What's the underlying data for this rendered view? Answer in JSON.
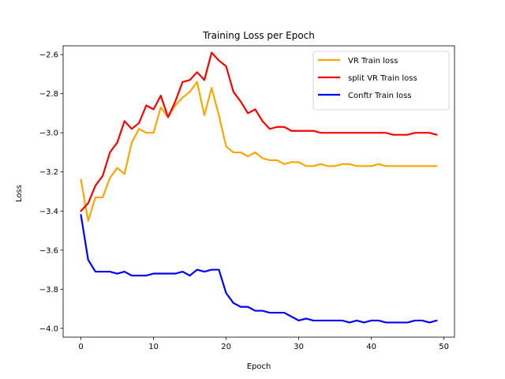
{
  "chart_data": {
    "type": "line",
    "title": "Training Loss per Epoch",
    "xlabel": "Epoch",
    "ylabel": "Loss",
    "xlim": [
      -2.45,
      51.45
    ],
    "ylim": [
      -4.045,
      -2.555
    ],
    "xticks": [
      0,
      10,
      20,
      30,
      40,
      50
    ],
    "yticks": [
      -4.0,
      -3.8,
      -3.6,
      -3.4,
      -3.2,
      -3.0,
      -2.8,
      -2.6
    ],
    "xtick_labels": [
      "0",
      "10",
      "20",
      "30",
      "40",
      "50"
    ],
    "ytick_labels": [
      "−4.0",
      "−3.8",
      "−3.6",
      "−3.4",
      "−3.2",
      "−3.0",
      "−2.8",
      "−2.6"
    ],
    "grid": false,
    "legend_position": "upper right",
    "x": [
      0,
      1,
      2,
      3,
      4,
      5,
      6,
      7,
      8,
      9,
      10,
      11,
      12,
      13,
      14,
      15,
      16,
      17,
      18,
      19,
      20,
      21,
      22,
      23,
      24,
      25,
      26,
      27,
      28,
      29,
      30,
      31,
      32,
      33,
      34,
      35,
      36,
      37,
      38,
      39,
      40,
      41,
      42,
      43,
      44,
      45,
      46,
      47,
      48,
      49
    ],
    "series": [
      {
        "name": "VR Train loss",
        "color": "#ffa500",
        "values": [
          -3.24,
          -3.45,
          -3.33,
          -3.33,
          -3.23,
          -3.18,
          -3.21,
          -3.05,
          -2.98,
          -3.0,
          -3.0,
          -2.87,
          -2.92,
          -2.86,
          -2.82,
          -2.79,
          -2.74,
          -2.91,
          -2.77,
          -2.91,
          -3.07,
          -3.1,
          -3.1,
          -3.12,
          -3.1,
          -3.13,
          -3.14,
          -3.14,
          -3.16,
          -3.15,
          -3.15,
          -3.17,
          -3.17,
          -3.16,
          -3.17,
          -3.17,
          -3.16,
          -3.16,
          -3.17,
          -3.17,
          -3.17,
          -3.16,
          -3.17,
          -3.17,
          -3.17,
          -3.17,
          -3.17,
          -3.17,
          -3.17,
          -3.17
        ]
      },
      {
        "name": "split VR Train loss",
        "color": "#ff0000",
        "values": [
          -3.4,
          -3.36,
          -3.27,
          -3.22,
          -3.1,
          -3.05,
          -2.94,
          -2.98,
          -2.95,
          -2.86,
          -2.88,
          -2.81,
          -2.92,
          -2.84,
          -2.74,
          -2.73,
          -2.69,
          -2.73,
          -2.59,
          -2.63,
          -2.66,
          -2.79,
          -2.84,
          -2.9,
          -2.88,
          -2.94,
          -2.98,
          -2.97,
          -2.97,
          -2.99,
          -2.99,
          -2.99,
          -2.99,
          -3.0,
          -3.0,
          -3.0,
          -3.0,
          -3.0,
          -3.0,
          -3.0,
          -3.0,
          -3.0,
          -3.0,
          -3.01,
          -3.01,
          -3.01,
          -3.0,
          -3.0,
          -3.0,
          -3.01
        ]
      },
      {
        "name": "Conftr Train loss",
        "color": "#0000ff",
        "values": [
          -3.42,
          -3.65,
          -3.71,
          -3.71,
          -3.71,
          -3.72,
          -3.71,
          -3.73,
          -3.73,
          -3.73,
          -3.72,
          -3.72,
          -3.72,
          -3.72,
          -3.71,
          -3.73,
          -3.7,
          -3.71,
          -3.7,
          -3.7,
          -3.82,
          -3.87,
          -3.89,
          -3.89,
          -3.91,
          -3.91,
          -3.92,
          -3.92,
          -3.92,
          -3.94,
          -3.96,
          -3.95,
          -3.96,
          -3.96,
          -3.96,
          -3.96,
          -3.96,
          -3.97,
          -3.96,
          -3.97,
          -3.96,
          -3.96,
          -3.97,
          -3.97,
          -3.97,
          -3.97,
          -3.96,
          -3.96,
          -3.97,
          -3.96
        ]
      }
    ]
  }
}
